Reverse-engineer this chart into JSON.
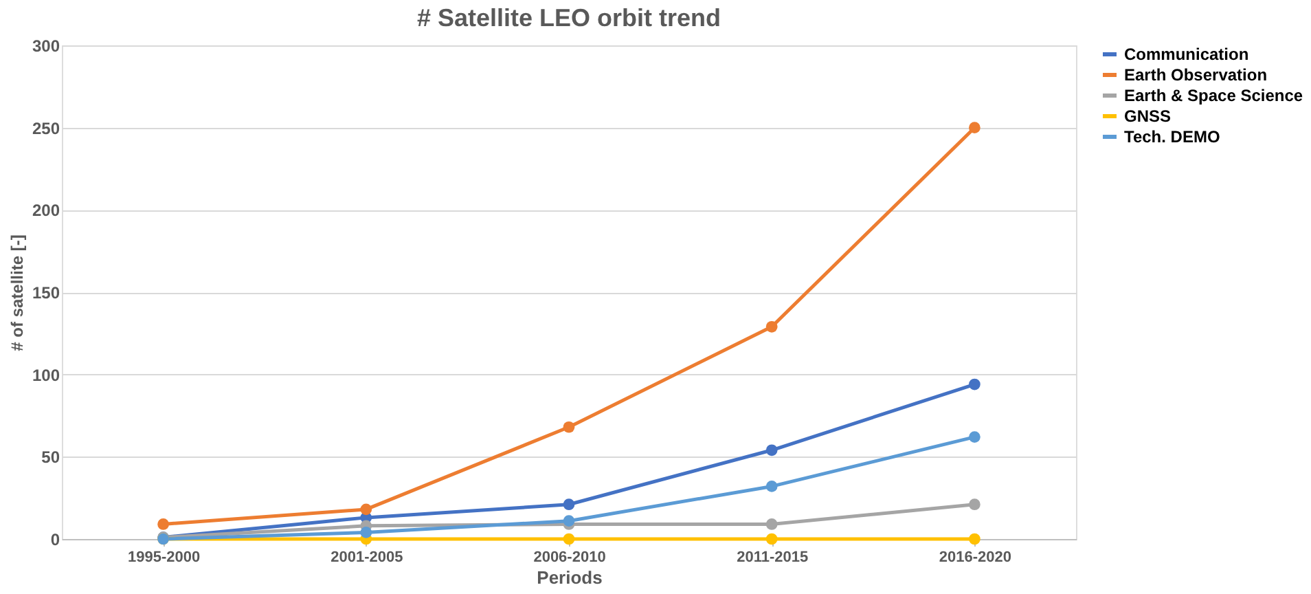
{
  "chart_data": {
    "type": "line",
    "title": "# Satellite LEO orbit trend",
    "xlabel": "Periods",
    "ylabel": "# of satellite [-]",
    "categories": [
      "1995-2000",
      "2001-2005",
      "2006-2010",
      "2011-2015",
      "2016-2020"
    ],
    "series": [
      {
        "name": "Communication",
        "color": "#4472c4",
        "values": [
          1,
          13,
          21,
          54,
          94
        ]
      },
      {
        "name": "Earth Observation",
        "color": "#ed7d31",
        "values": [
          9,
          18,
          68,
          129,
          250
        ]
      },
      {
        "name": "Earth & Space Science",
        "color": "#a5a5a5",
        "values": [
          1,
          8,
          9,
          9,
          21
        ]
      },
      {
        "name": "GNSS",
        "color": "#ffc000",
        "values": [
          0,
          0,
          0,
          0,
          0
        ]
      },
      {
        "name": "Tech. DEMO",
        "color": "#5b9bd5",
        "values": [
          0,
          4,
          11,
          32,
          62
        ]
      }
    ],
    "ylim": [
      0,
      300
    ],
    "yticks": [
      0,
      50,
      100,
      150,
      200,
      250,
      300
    ],
    "grid": "y",
    "legend": "right",
    "marker": "circle",
    "line_style": "solid"
  }
}
